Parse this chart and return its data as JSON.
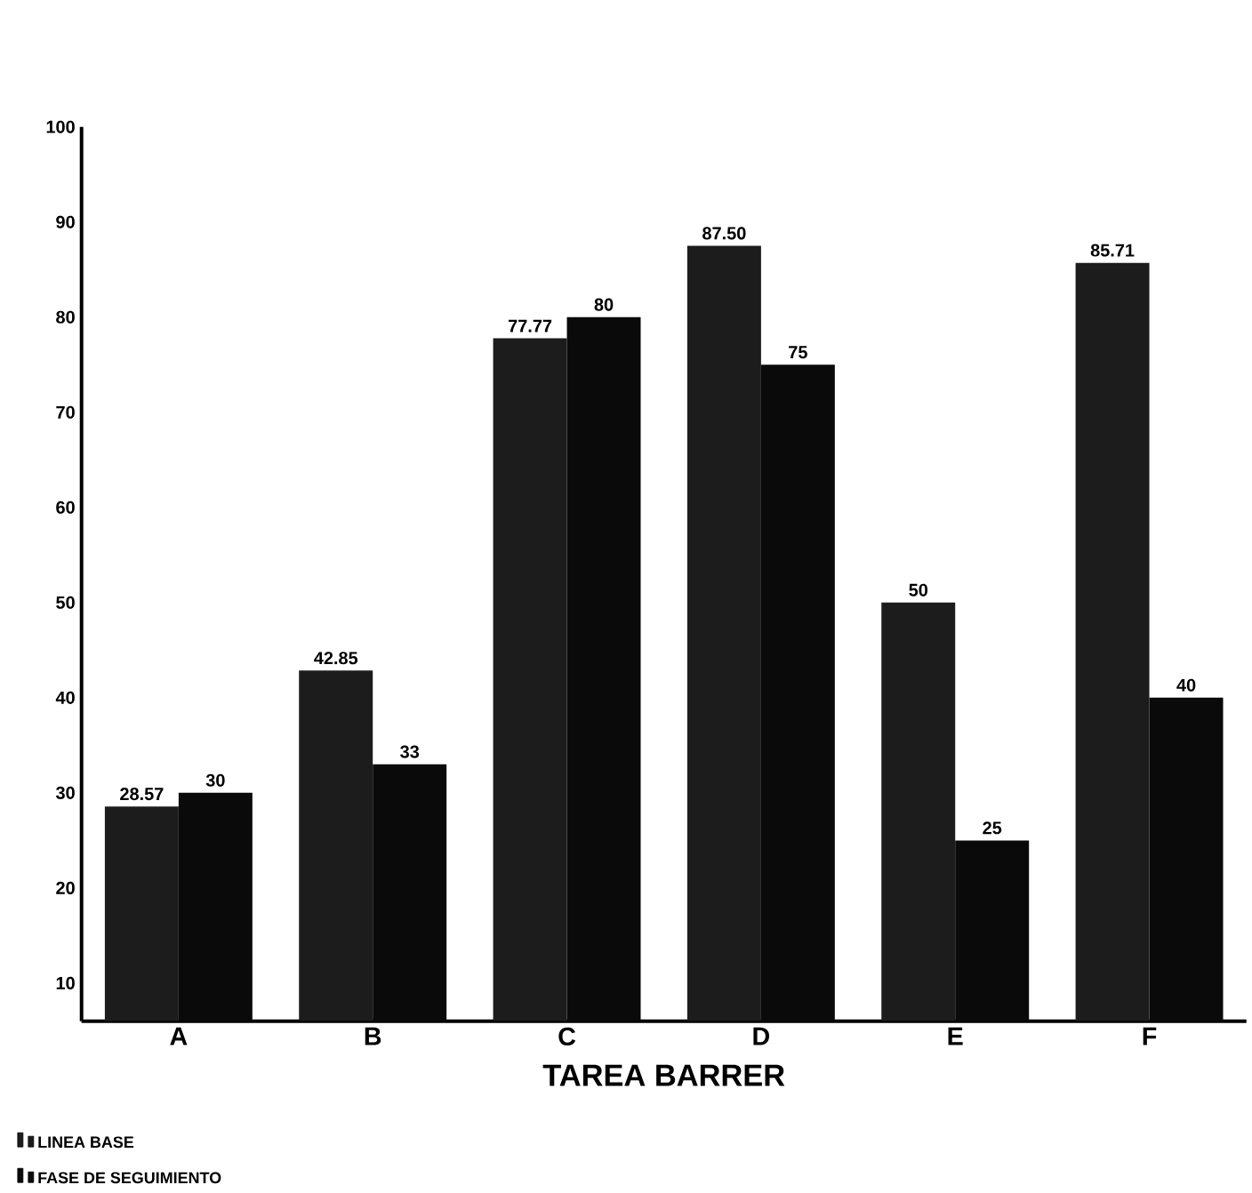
{
  "chart_data": {
    "type": "bar",
    "xlabel": "TAREA BARRER",
    "categories": [
      "A",
      "B",
      "C",
      "D",
      "E",
      "F"
    ],
    "series": [
      {
        "name": "LINEA BASE",
        "color": "#1c1c1c",
        "values": [
          28.57,
          42.85,
          77.77,
          87.5,
          50,
          85.71
        ],
        "value_labels": [
          "28.57",
          "42.85",
          "77.77",
          "87.50",
          "50",
          "85.71"
        ]
      },
      {
        "name": "FASE DE SEGUIMIENTO",
        "color": "#0a0a0a",
        "values": [
          30,
          33,
          80,
          75,
          25,
          40
        ],
        "value_labels": [
          "30",
          "33",
          "80",
          "75",
          "25",
          "40"
        ]
      }
    ],
    "ylim": [
      6,
      100
    ],
    "yticks": [
      10,
      20,
      30,
      40,
      50,
      60,
      70,
      80,
      90,
      100
    ],
    "legend": "bottom left",
    "grid": false
  }
}
